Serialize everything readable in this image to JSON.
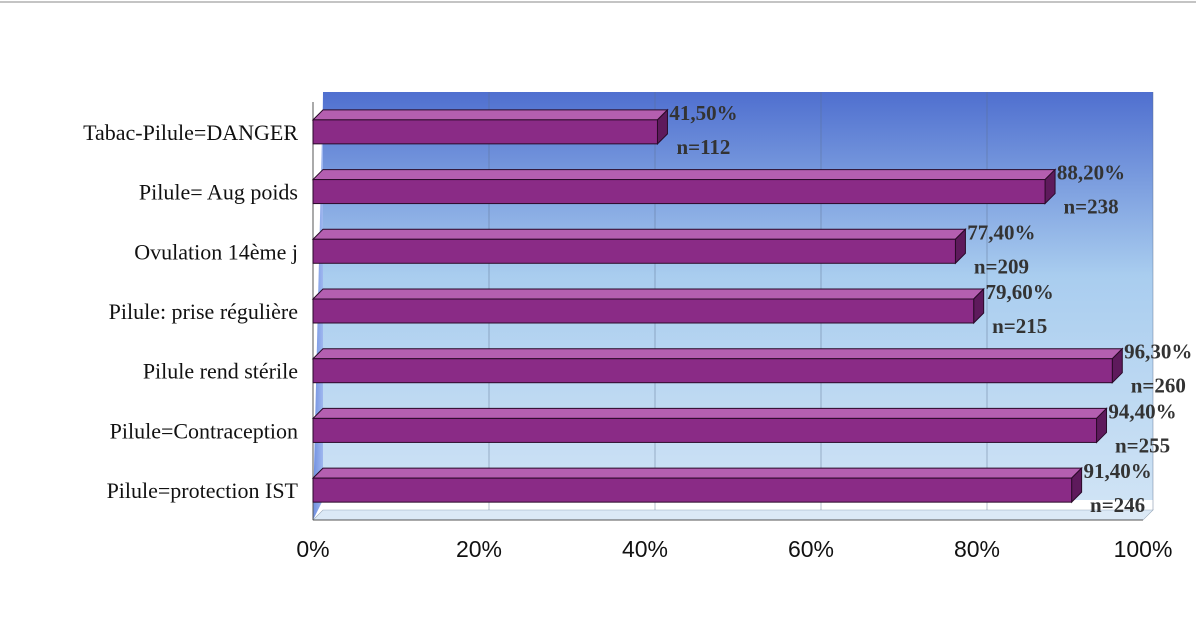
{
  "chart_data": {
    "type": "bar",
    "orientation": "horizontal",
    "title": "",
    "xlabel": "",
    "ylabel": "",
    "xlim": [
      0,
      100
    ],
    "x_ticks": [
      "0%",
      "20%",
      "40%",
      "60%",
      "80%",
      "100%"
    ],
    "grid": true,
    "legend": "none",
    "categories": [
      "Tabac-Pilule=DANGER",
      "Pilule= Aug poids",
      "Ovulation 14ème j",
      "Pilule: prise régulière",
      "Pilule rend stérile",
      "Pilule=Contraception",
      "Pilule=protection IST"
    ],
    "values": [
      41.5,
      88.2,
      77.4,
      79.6,
      96.3,
      94.4,
      91.4
    ],
    "percent_labels": [
      "41,50%",
      "88,20%",
      "77,40%",
      "79,60%",
      "96,30%",
      "94,40%",
      "91,40%"
    ],
    "n_labels": [
      "n=112",
      "n=238",
      "n=209",
      "n=215",
      "n=260",
      "n=255",
      "n=246"
    ],
    "colors": {
      "bar": "#8a2b86",
      "bar_top": "#b45fb0",
      "bar_side": "#5e1a5c",
      "plot_top": "#4f6fcf",
      "plot_bottom": "#cfe3f5"
    }
  }
}
